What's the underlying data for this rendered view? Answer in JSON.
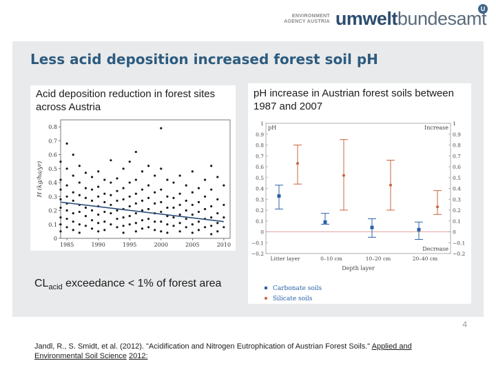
{
  "logo": {
    "small_line1": "ENVIRONMENT",
    "small_line2": "AGENCY AUSTRIA",
    "name_bold": "umwelt",
    "name_rest": "bundesamt",
    "mark": "U"
  },
  "slide": {
    "title": "Less acid deposition increased forest soil pH",
    "page_number": "4",
    "left_panel_title": "Acid deposition reduction in forest sites across Austria",
    "right_panel_title": "pH increase in Austrian forest soils between 1987 and 2007",
    "cl_prefix": "CL",
    "cl_sub": "acid",
    "cl_suffix": " exceedance < 1% of forest area",
    "reference_text": "Jandl, R., S. Smidt, et al. (2012). \"Acidification and Nitrogen Eutrophication of Austrian Forest Soils.\" ",
    "reference_journal": "Applied and Environmental Soil Science",
    "reference_year": "2012:"
  },
  "chart_data": [
    {
      "type": "scatter",
      "ylabel": "H (kg/ha/yr)",
      "xlim": [
        1984,
        2011
      ],
      "ylim": [
        0,
        0.85
      ],
      "x_ticks": [
        1985,
        1990,
        1995,
        2000,
        2005,
        2010
      ],
      "y_ticks": [
        0,
        0.1,
        0.2,
        0.3,
        0.4,
        0.5,
        0.6,
        0.7,
        0.8
      ],
      "x_tick_labels": [
        "1985",
        "1990",
        "1995",
        "2000",
        "2005",
        "2010"
      ],
      "y_tick_labels": [
        "0",
        "0.1",
        "0.2",
        "0.3",
        "0.4",
        "0.5",
        "0.6",
        "0.7",
        "0.8"
      ],
      "trend": {
        "x": [
          1984,
          2010
        ],
        "y": [
          0.26,
          0.12
        ]
      },
      "points": [
        [
          1984,
          0.55
        ],
        [
          1984,
          0.42
        ],
        [
          1984,
          0.35
        ],
        [
          1984,
          0.28
        ],
        [
          1984,
          0.22
        ],
        [
          1984,
          0.15
        ],
        [
          1984,
          0.1
        ],
        [
          1984,
          0.05
        ],
        [
          1985,
          0.68
        ],
        [
          1985,
          0.5
        ],
        [
          1985,
          0.38
        ],
        [
          1985,
          0.3
        ],
        [
          1985,
          0.25
        ],
        [
          1985,
          0.2
        ],
        [
          1985,
          0.14
        ],
        [
          1985,
          0.08
        ],
        [
          1986,
          0.6
        ],
        [
          1986,
          0.45
        ],
        [
          1986,
          0.33
        ],
        [
          1986,
          0.27
        ],
        [
          1986,
          0.18
        ],
        [
          1986,
          0.12
        ],
        [
          1986,
          0.06
        ],
        [
          1987,
          0.52
        ],
        [
          1987,
          0.4
        ],
        [
          1987,
          0.31
        ],
        [
          1987,
          0.24
        ],
        [
          1987,
          0.19
        ],
        [
          1987,
          0.1
        ],
        [
          1987,
          0.04
        ],
        [
          1988,
          0.47
        ],
        [
          1988,
          0.36
        ],
        [
          1988,
          0.29
        ],
        [
          1988,
          0.22
        ],
        [
          1988,
          0.16
        ],
        [
          1988,
          0.09
        ],
        [
          1989,
          0.44
        ],
        [
          1989,
          0.35
        ],
        [
          1989,
          0.27
        ],
        [
          1989,
          0.2
        ],
        [
          1989,
          0.13
        ],
        [
          1989,
          0.07
        ],
        [
          1990,
          0.48
        ],
        [
          1990,
          0.37
        ],
        [
          1990,
          0.3
        ],
        [
          1990,
          0.23
        ],
        [
          1990,
          0.17
        ],
        [
          1990,
          0.11
        ],
        [
          1990,
          0.05
        ],
        [
          1991,
          0.42
        ],
        [
          1991,
          0.32
        ],
        [
          1991,
          0.26
        ],
        [
          1991,
          0.19
        ],
        [
          1991,
          0.12
        ],
        [
          1991,
          0.06
        ],
        [
          1992,
          0.56
        ],
        [
          1992,
          0.4
        ],
        [
          1992,
          0.31
        ],
        [
          1992,
          0.24
        ],
        [
          1992,
          0.18
        ],
        [
          1992,
          0.1
        ],
        [
          1993,
          0.43
        ],
        [
          1993,
          0.34
        ],
        [
          1993,
          0.27
        ],
        [
          1993,
          0.2
        ],
        [
          1993,
          0.14
        ],
        [
          1993,
          0.08
        ],
        [
          1994,
          0.5
        ],
        [
          1994,
          0.36
        ],
        [
          1994,
          0.28
        ],
        [
          1994,
          0.21
        ],
        [
          1994,
          0.15
        ],
        [
          1994,
          0.09
        ],
        [
          1994,
          0.04
        ],
        [
          1995,
          0.55
        ],
        [
          1995,
          0.4
        ],
        [
          1995,
          0.3
        ],
        [
          1995,
          0.23
        ],
        [
          1995,
          0.16
        ],
        [
          1995,
          0.1
        ],
        [
          1996,
          0.62
        ],
        [
          1996,
          0.42
        ],
        [
          1996,
          0.32
        ],
        [
          1996,
          0.25
        ],
        [
          1996,
          0.18
        ],
        [
          1996,
          0.11
        ],
        [
          1996,
          0.05
        ],
        [
          1997,
          0.48
        ],
        [
          1997,
          0.35
        ],
        [
          1997,
          0.27
        ],
        [
          1997,
          0.2
        ],
        [
          1997,
          0.13
        ],
        [
          1997,
          0.07
        ],
        [
          1998,
          0.52
        ],
        [
          1998,
          0.38
        ],
        [
          1998,
          0.29
        ],
        [
          1998,
          0.21
        ],
        [
          1998,
          0.14
        ],
        [
          1998,
          0.08
        ],
        [
          1999,
          0.45
        ],
        [
          1999,
          0.33
        ],
        [
          1999,
          0.25
        ],
        [
          1999,
          0.18
        ],
        [
          1999,
          0.12
        ],
        [
          1999,
          0.06
        ],
        [
          2000,
          0.79
        ],
        [
          2000,
          0.5
        ],
        [
          2000,
          0.35
        ],
        [
          2000,
          0.26
        ],
        [
          2000,
          0.19
        ],
        [
          2000,
          0.12
        ],
        [
          2000,
          0.05
        ],
        [
          2001,
          0.42
        ],
        [
          2001,
          0.3
        ],
        [
          2001,
          0.22
        ],
        [
          2001,
          0.16
        ],
        [
          2001,
          0.1
        ],
        [
          2001,
          0.04
        ],
        [
          2002,
          0.4
        ],
        [
          2002,
          0.29
        ],
        [
          2002,
          0.22
        ],
        [
          2002,
          0.15
        ],
        [
          2002,
          0.09
        ],
        [
          2003,
          0.45
        ],
        [
          2003,
          0.32
        ],
        [
          2003,
          0.24
        ],
        [
          2003,
          0.17
        ],
        [
          2003,
          0.11
        ],
        [
          2003,
          0.05
        ],
        [
          2004,
          0.38
        ],
        [
          2004,
          0.27
        ],
        [
          2004,
          0.2
        ],
        [
          2004,
          0.14
        ],
        [
          2004,
          0.08
        ],
        [
          2005,
          0.48
        ],
        [
          2005,
          0.33
        ],
        [
          2005,
          0.24
        ],
        [
          2005,
          0.17
        ],
        [
          2005,
          0.1
        ],
        [
          2005,
          0.04
        ],
        [
          2006,
          0.36
        ],
        [
          2006,
          0.26
        ],
        [
          2006,
          0.19
        ],
        [
          2006,
          0.12
        ],
        [
          2006,
          0.06
        ],
        [
          2007,
          0.42
        ],
        [
          2007,
          0.3
        ],
        [
          2007,
          0.21
        ],
        [
          2007,
          0.14
        ],
        [
          2007,
          0.08
        ],
        [
          2008,
          0.52
        ],
        [
          2008,
          0.35
        ],
        [
          2008,
          0.23
        ],
        [
          2008,
          0.15
        ],
        [
          2008,
          0.09
        ],
        [
          2008,
          0.03
        ],
        [
          2009,
          0.44
        ],
        [
          2009,
          0.28
        ],
        [
          2009,
          0.18
        ],
        [
          2009,
          0.11
        ],
        [
          2009,
          0.05
        ],
        [
          2010,
          0.38
        ],
        [
          2010,
          0.24
        ],
        [
          2010,
          0.15
        ],
        [
          2010,
          0.08
        ]
      ],
      "point_color": "#1a1a1a",
      "trend_color": "#2a4b7c"
    },
    {
      "type": "scatter",
      "xlabel": "Depth layer",
      "ylim": [
        -0.2,
        1.0
      ],
      "y_ticks": [
        -0.2,
        -0.1,
        0,
        0.1,
        0.2,
        0.3,
        0.4,
        0.5,
        0.6,
        0.7,
        0.8,
        0.9,
        1
      ],
      "y_tick_labels": [
        "−0.2",
        "−0.1",
        "0",
        "0.1",
        "0.2",
        "0.3",
        "0.4",
        "0.5",
        "0.6",
        "0.7",
        "0.8",
        "0.9",
        "1"
      ],
      "categories": [
        "Litter layer",
        "0–10 cm",
        "10–20 cm",
        "20–40 cm"
      ],
      "corner_label": "pH",
      "increase_label": "Increase",
      "decrease_label": "Decrease",
      "zero_line_color": "#e8a3a3",
      "series": [
        {
          "name": "Carbonate soils",
          "color": "#2a62a6",
          "values": [
            0.33,
            0.09,
            0.04,
            0.02
          ],
          "low": [
            0.21,
            0.07,
            -0.05,
            -0.07
          ],
          "high": [
            0.43,
            0.17,
            0.12,
            0.09
          ]
        },
        {
          "name": "Silicate soils",
          "color": "#c8653c",
          "values": [
            0.63,
            0.52,
            0.43,
            0.23
          ],
          "low": [
            0.44,
            0.2,
            0.2,
            0.16
          ],
          "high": [
            0.8,
            0.85,
            0.66,
            0.38
          ]
        }
      ]
    }
  ]
}
